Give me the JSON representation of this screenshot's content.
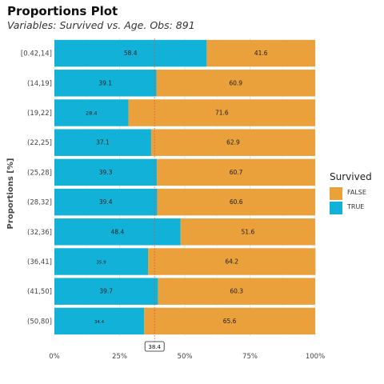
{
  "title": "Proportions Plot",
  "subtitle": "Variables: Survived vs. Age. Obs: 891",
  "chart_data": {
    "type": "bar",
    "orientation": "horizontal",
    "stacked": true,
    "ylabel": "Proportions [%]",
    "xlabel": "",
    "xlim": [
      0,
      100
    ],
    "x_ticks": [
      "0%",
      "25%",
      "50%",
      "75%",
      "100%"
    ],
    "categories": [
      "[0.42,14]",
      "(14,19]",
      "(19,22]",
      "(22,25]",
      "(25,28]",
      "(28,32]",
      "(32,36]",
      "(36,41]",
      "(41,50]",
      "(50,80]"
    ],
    "series": [
      {
        "name": "TRUE",
        "color": "#12b1d8",
        "values": [
          58.4,
          39.1,
          28.4,
          37.1,
          39.3,
          39.4,
          48.4,
          35.9,
          39.7,
          34.4
        ]
      },
      {
        "name": "FALSE",
        "color": "#eaa03b",
        "values": [
          41.6,
          60.9,
          71.6,
          62.9,
          60.7,
          60.6,
          51.6,
          64.2,
          60.3,
          65.6
        ]
      }
    ],
    "reference_line": {
      "value": 38.4,
      "label": "38.4",
      "color": "#e0503a",
      "style": "dotted"
    },
    "legend": {
      "title": "Survived",
      "position": "right",
      "entries": [
        "FALSE",
        "TRUE"
      ]
    },
    "grid": true
  }
}
